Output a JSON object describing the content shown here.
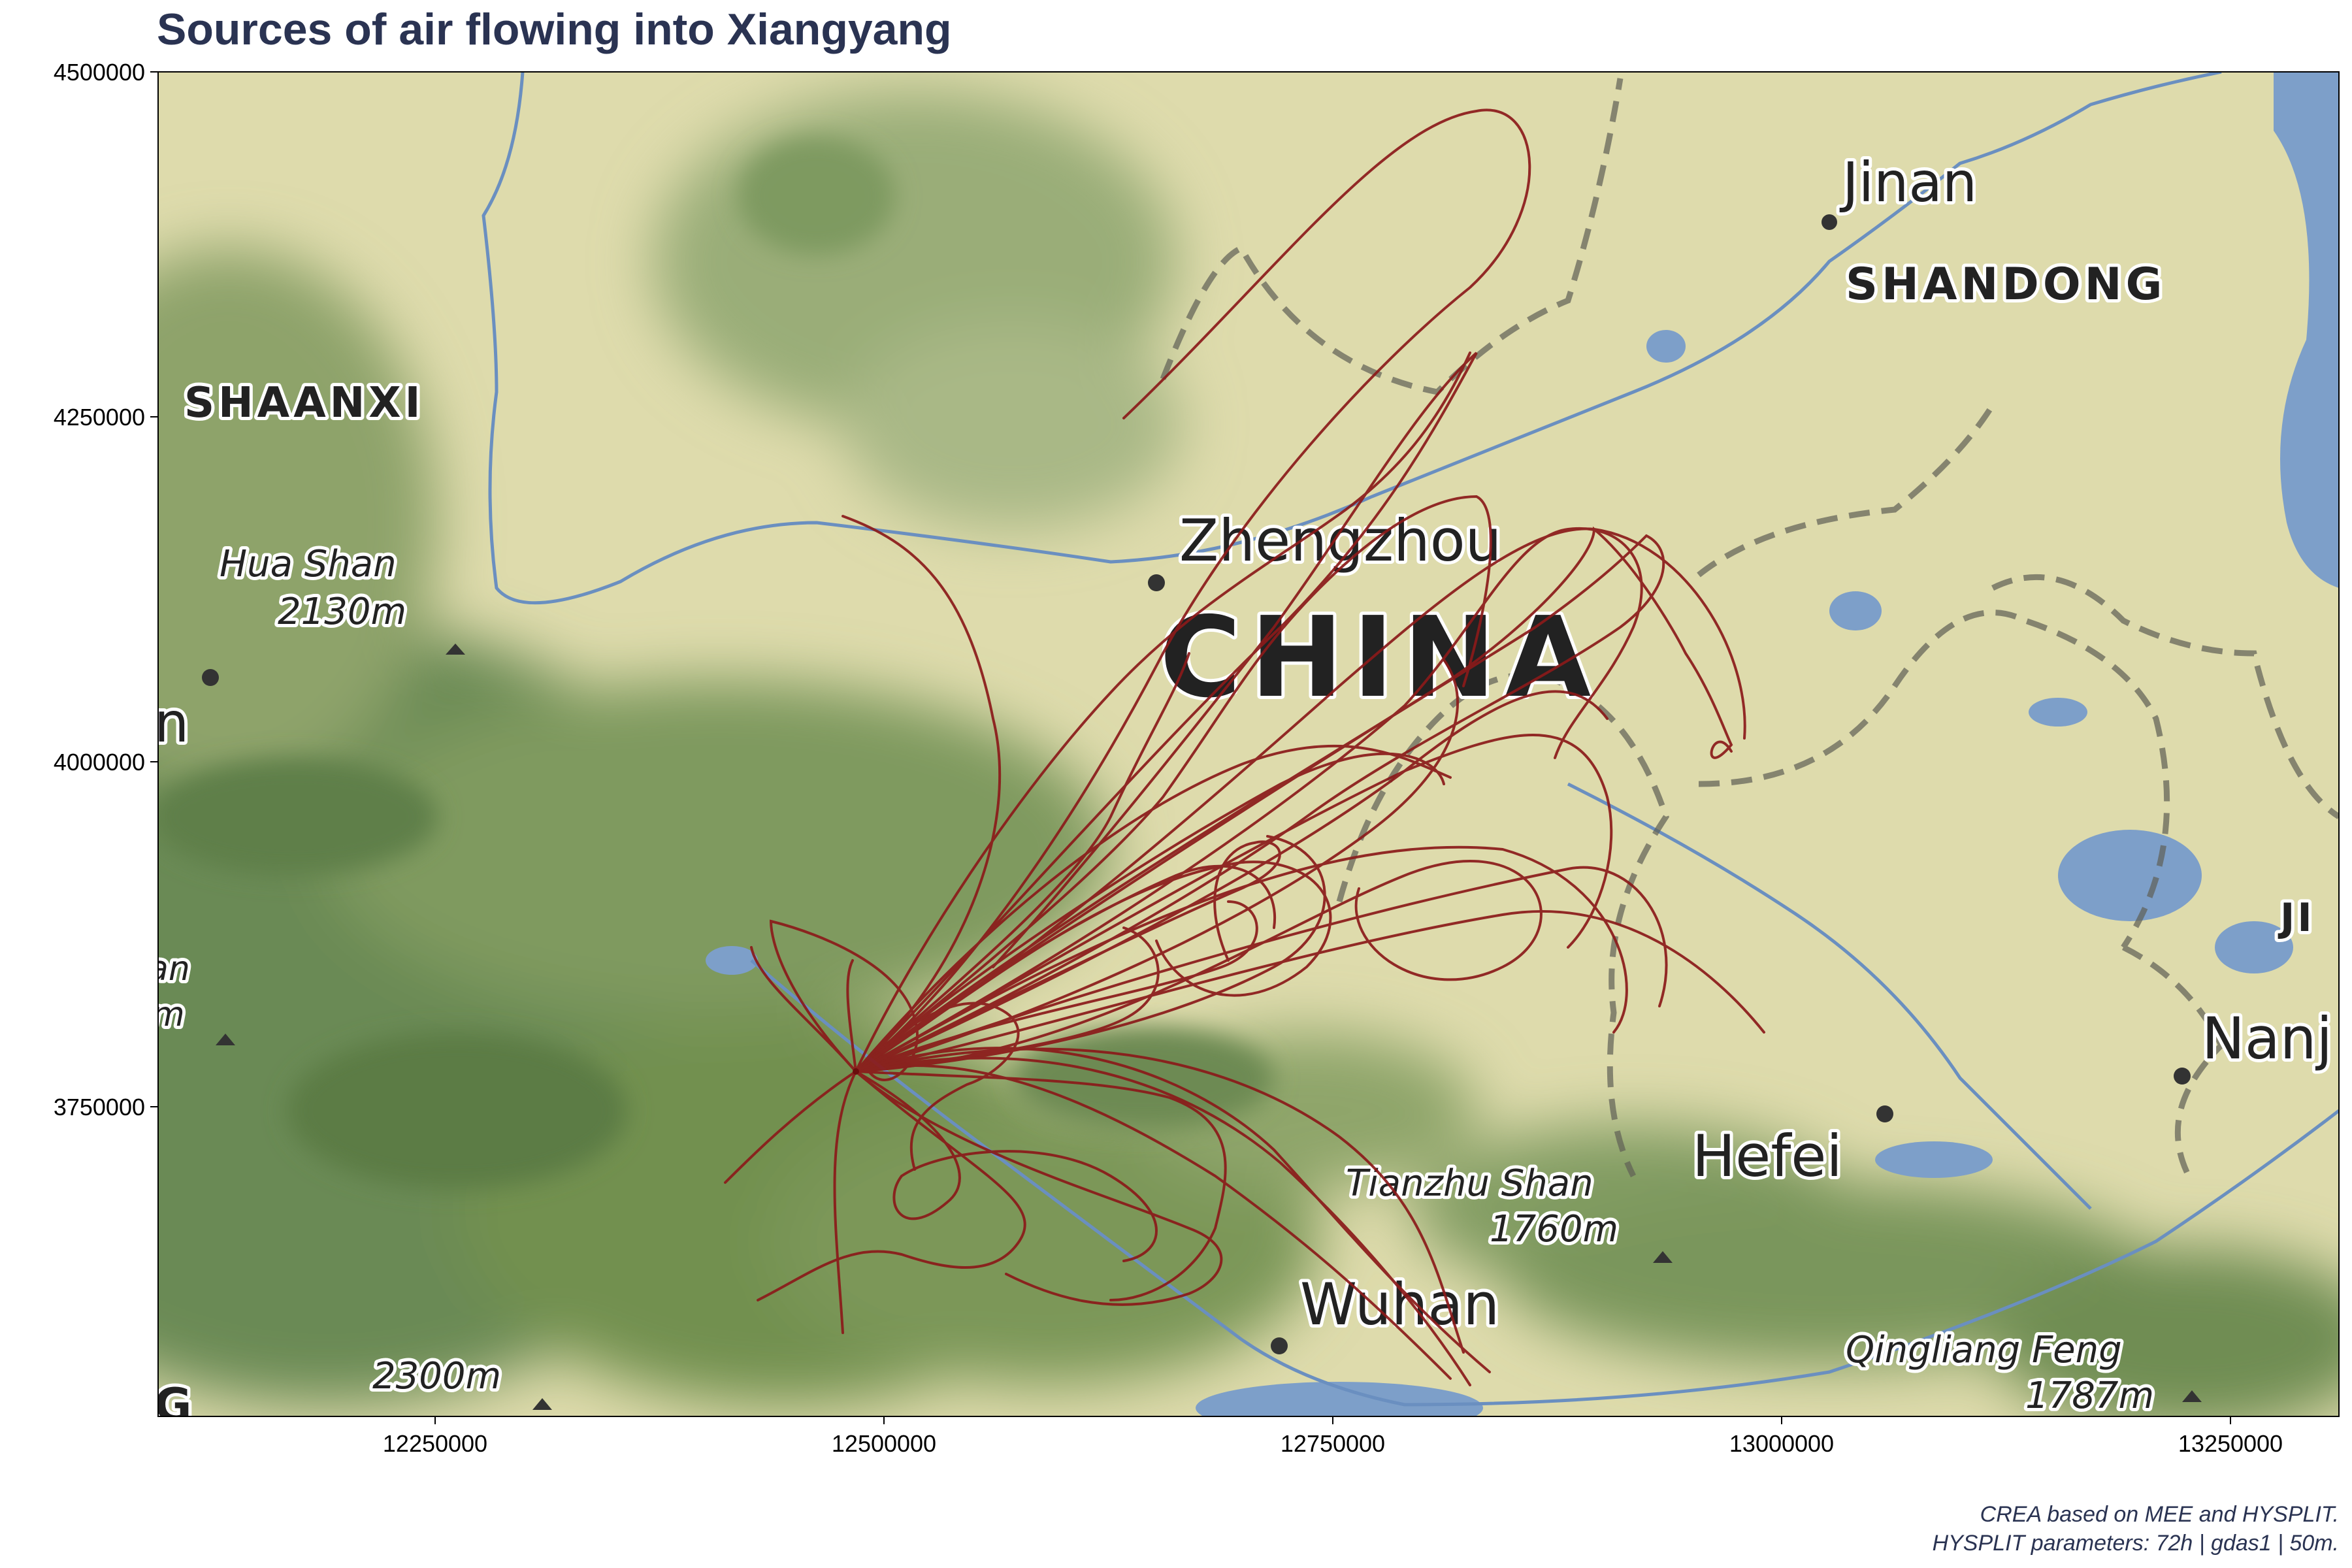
{
  "title": "Sources of air flowing into Xiangyang",
  "caption": {
    "line1": "CREA based on MEE and HYSPLIT.",
    "line2": "HYSPLIT parameters: 72h | gdas1 | 50m."
  },
  "axes": {
    "x_ticks": [
      "12250000",
      "12500000",
      "12750000",
      "13000000",
      "13250000"
    ],
    "y_ticks": [
      "4500000",
      "4250000",
      "4000000",
      "3750000"
    ]
  },
  "map_labels": {
    "shaanxi": "SHAANXI",
    "jinan": "Jinan",
    "shandong": "SHANDONG",
    "zhengzhou": "Zhengzhou",
    "china": "CHINA",
    "hua_shan": "Hua Shan",
    "hua_shan_elev": "2130m",
    "hefei": "Hefei",
    "nanj": "Nanj",
    "tianzhu_shan": "Tianzhu Shan",
    "tianzhu_elev": "1760m",
    "wuhan": "Wuhan",
    "qingliang_feng": "Qingliang Feng",
    "qingliang_elev": "1787m",
    "elev_2300": "2300m",
    "ji": "JI",
    "partial_n": "n",
    "partial_an": "an",
    "partial_m": "m",
    "partial_g": "G"
  },
  "colors": {
    "title": "#2a3352",
    "trajectory": "#8b1a1a",
    "land_plain": "#dcdcaa",
    "land_mountain": "#6f8f5a",
    "water": "#7d9fc9"
  }
}
